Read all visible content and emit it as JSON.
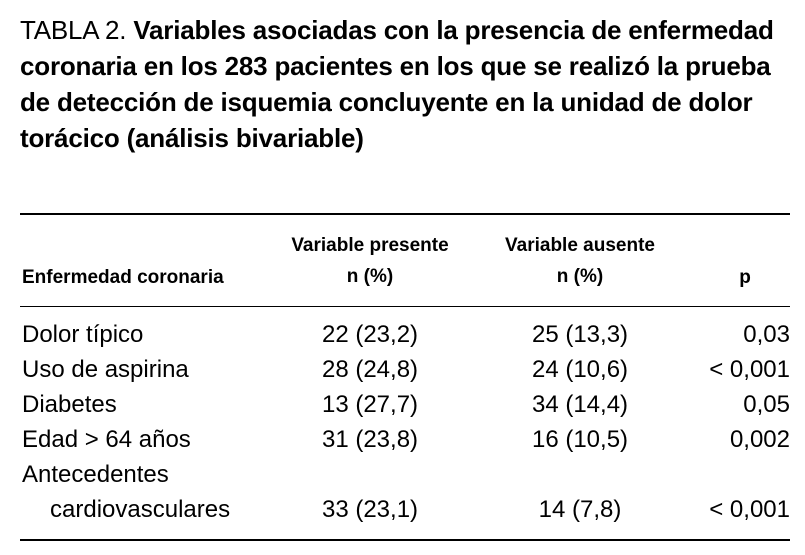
{
  "title": {
    "label": "TABLA 2.",
    "text": "Variables asociadas con la presencia de enfermedad coronaria en los 283 pacientes en los que se realizó la prueba de detección de isquemia concluyente en la unidad de dolor torácico (análisis bivariable)"
  },
  "table": {
    "headers": {
      "col0": "Enfermedad coronaria",
      "col1_line1": "Variable presente",
      "col1_line2": "n (%)",
      "col2_line1": "Variable ausente",
      "col2_line2": "n (%)",
      "col3": "p"
    },
    "rows": [
      {
        "label": "Dolor típico",
        "present": "22 (23,2)",
        "absent": "25 (13,3)",
        "p": "0,03"
      },
      {
        "label": "Uso de aspirina",
        "present": "28 (24,8)",
        "absent": "24 (10,6)",
        "p": "< 0,001"
      },
      {
        "label": "Diabetes",
        "present": "13 (27,7)",
        "absent": "34 (14,4)",
        "p": "0,05"
      },
      {
        "label": "Edad > 64 años",
        "present": "31 (23,8)",
        "absent": "16 (10,5)",
        "p": "0,002"
      },
      {
        "label": "Antecedentes",
        "present": "",
        "absent": "",
        "p": ""
      },
      {
        "label": "cardiovasculares",
        "present": "33 (23,1)",
        "absent": "14 (7,8)",
        "p": "< 0,001"
      }
    ]
  }
}
